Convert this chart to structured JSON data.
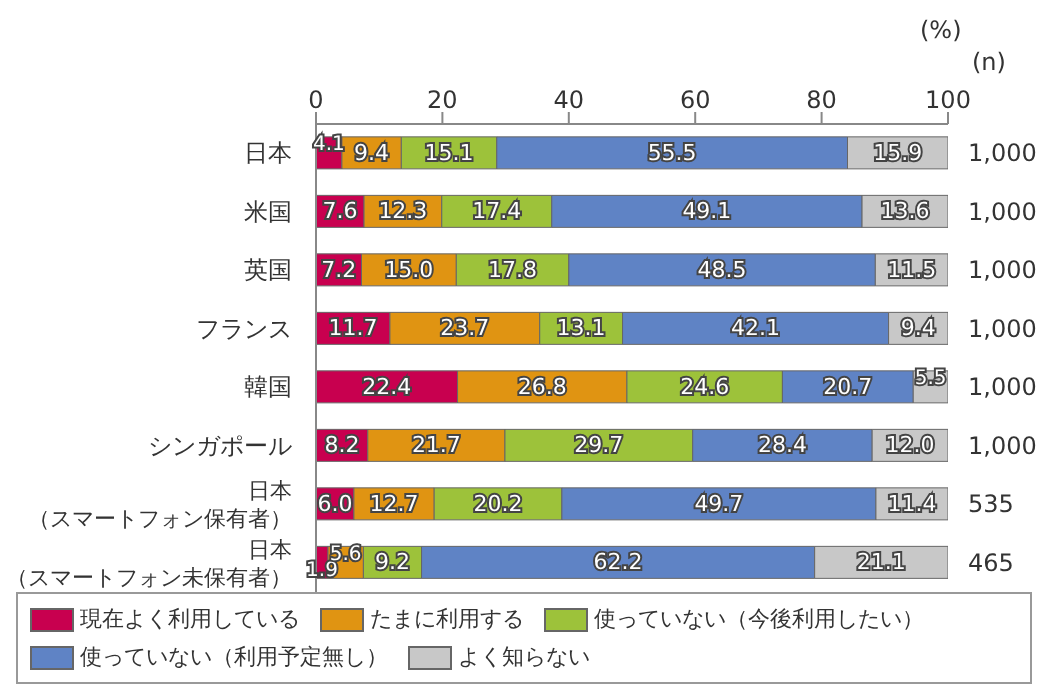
{
  "chart_data": {
    "type": "bar",
    "orientation": "horizontal",
    "stacked": true,
    "legend": "bottom",
    "categories": [
      "日本",
      "米国",
      "英国",
      "フランス",
      "韓国",
      "シンガポール",
      "日本（スマートフォン保有者）",
      "日本（スマートフォン未保有者）"
    ],
    "series": [
      {
        "name": "現在よく利用している",
        "color": "#c8004f",
        "values": [
          4.1,
          7.6,
          7.2,
          11.7,
          22.4,
          8.2,
          6.0,
          1.9
        ],
        "value_labels": [
          "4.1",
          "7.6",
          "7.2",
          "11.7",
          "22.4",
          "8.2",
          "6.0",
          "1.9"
        ]
      },
      {
        "name": "たまに利用する",
        "color": "#e09412",
        "values": [
          9.4,
          12.3,
          15.0,
          23.7,
          26.8,
          21.7,
          12.7,
          5.6
        ],
        "value_labels": [
          "9.4",
          "12.3",
          "15.0",
          "23.7",
          "26.8",
          "21.7",
          "12.7",
          "5.6"
        ]
      },
      {
        "name": "使っていない（今後利用したい）",
        "color": "#9dc23a",
        "values": [
          15.1,
          17.4,
          17.8,
          13.1,
          24.6,
          29.7,
          20.2,
          9.2
        ],
        "value_labels": [
          "15.1",
          "17.4",
          "17.8",
          "13.1",
          "24.6",
          "29.7",
          "20.2",
          "9.2"
        ]
      },
      {
        "name": "使っていない（利用予定無し）",
        "color": "#5f83c5",
        "values": [
          55.5,
          49.1,
          48.5,
          42.1,
          20.7,
          28.4,
          49.7,
          62.2
        ],
        "value_labels": [
          "55.5",
          "49.1",
          "48.5",
          "42.1",
          "20.7",
          "28.4",
          "49.7",
          "62.2"
        ]
      },
      {
        "name": "よく知らない",
        "color": "#c8c8c8",
        "values": [
          15.9,
          13.6,
          11.5,
          9.4,
          5.5,
          12.0,
          11.4,
          21.1
        ],
        "value_labels": [
          "15.9",
          "13.6",
          "11.5",
          "9.4",
          "5.5",
          "12.0",
          "11.4",
          "21.1"
        ]
      }
    ],
    "xlim": [
      0,
      100
    ],
    "xticks": [
      0,
      20,
      40,
      60,
      80,
      100
    ],
    "annotations": [
      "(%)",
      "(n)",
      "1,000",
      "1,000",
      "1,000",
      "1,000",
      "1,000",
      "1,000",
      "535",
      "465"
    ]
  }
}
